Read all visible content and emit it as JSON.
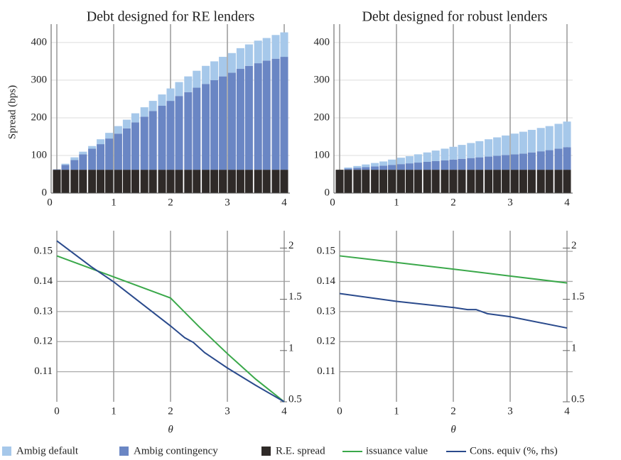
{
  "chart_data": [
    {
      "type": "bar",
      "stacked": true,
      "title": "Debt designed for RE lenders",
      "ylabel": "Spread (bps)",
      "x": [
        0,
        0.15,
        0.31,
        0.46,
        0.62,
        0.77,
        0.92,
        1.08,
        1.23,
        1.38,
        1.54,
        1.69,
        1.85,
        2,
        2.15,
        2.31,
        2.46,
        2.62,
        2.77,
        2.92,
        3.08,
        3.23,
        3.38,
        3.54,
        3.69,
        3.85,
        4
      ],
      "series": [
        {
          "name": "R.E. spread",
          "color": "#2f2a28",
          "values": [
            62,
            62,
            62,
            62,
            62,
            62,
            62,
            62,
            62,
            62,
            62,
            62,
            62,
            62,
            62,
            62,
            62,
            62,
            62,
            62,
            62,
            62,
            62,
            62,
            62,
            62,
            62
          ]
        },
        {
          "name": "Ambig contingency",
          "color": "#6a86c4",
          "values": [
            1,
            13,
            26,
            41,
            56,
            68,
            83,
            96,
            110,
            126,
            141,
            156,
            170,
            183,
            196,
            206,
            218,
            228,
            238,
            248,
            258,
            268,
            276,
            283,
            290,
            295,
            300
          ]
        },
        {
          "name": "Ambig default",
          "color": "#a6c8ea",
          "values": [
            0,
            3,
            7,
            7,
            7,
            13,
            15,
            20,
            23,
            24,
            25,
            27,
            30,
            33,
            37,
            42,
            45,
            48,
            50,
            52,
            52,
            55,
            57,
            60,
            60,
            63,
            65
          ]
        }
      ],
      "xlim": [
        0,
        4
      ],
      "xticks": [
        0,
        1,
        2,
        3,
        4
      ],
      "ylim": [
        0,
        430
      ],
      "yticks": [
        0,
        100,
        200,
        300,
        400
      ],
      "grid": true
    },
    {
      "type": "bar",
      "stacked": true,
      "title": "Debt designed for robust lenders",
      "x": [
        0,
        0.15,
        0.31,
        0.46,
        0.62,
        0.77,
        0.92,
        1.08,
        1.23,
        1.38,
        1.54,
        1.69,
        1.85,
        2,
        2.15,
        2.31,
        2.46,
        2.62,
        2.77,
        2.92,
        3.08,
        3.23,
        3.38,
        3.54,
        3.69,
        3.85,
        4
      ],
      "series": [
        {
          "color": "#2f2a28",
          "values": [
            62,
            62,
            62,
            62,
            62,
            62,
            62,
            62,
            62,
            62,
            62,
            62,
            62,
            62,
            62,
            62,
            62,
            62,
            62,
            62,
            62,
            62,
            62,
            62,
            62,
            62,
            62
          ]
        },
        {
          "color": "#6a86c4",
          "values": [
            0,
            3,
            5,
            7,
            9,
            11,
            13,
            15,
            17,
            19,
            21,
            23,
            25,
            27,
            29,
            31,
            33,
            35,
            37,
            39,
            41,
            43,
            46,
            49,
            52,
            56,
            60
          ]
        },
        {
          "color": "#a6c8ea",
          "values": [
            0,
            3,
            5,
            7,
            9,
            11,
            14,
            17,
            19,
            22,
            25,
            28,
            31,
            34,
            37,
            40,
            43,
            46,
            49,
            52,
            55,
            58,
            60,
            62,
            64,
            66,
            68
          ]
        }
      ],
      "xlim": [
        0,
        4
      ],
      "xticks": [
        0,
        1,
        2,
        3,
        4
      ],
      "ylim": [
        0,
        430
      ],
      "yticks": [
        0,
        100,
        200,
        300,
        400
      ],
      "grid": true
    },
    {
      "type": "line",
      "xlabel": "θ",
      "series": [
        {
          "name": "issuance value",
          "color": "#3aa84a",
          "axis": "y",
          "x": [
            0,
            1,
            1.93,
            2,
            2.5,
            3,
            3.5,
            4
          ],
          "values": [
            0.1485,
            0.1415,
            0.135,
            0.1345,
            0.125,
            0.116,
            0.1075,
            0.1
          ]
        },
        {
          "name": "Cons. equiv (%, rhs)",
          "color": "#2a4a8c",
          "axis": "y2",
          "x": [
            0,
            0.6,
            1,
            2,
            2.25,
            2.4,
            2.6,
            3,
            3.5,
            4
          ],
          "values": [
            2.07,
            1.82,
            1.67,
            1.24,
            1.125,
            1.08,
            0.98,
            0.83,
            0.66,
            0.5
          ]
        }
      ],
      "xlim": [
        0,
        4
      ],
      "xticks": [
        0,
        1,
        2,
        3,
        4
      ],
      "ylim": [
        0.1,
        0.1545
      ],
      "yticks": [
        0.11,
        0.12,
        0.13,
        0.14,
        0.15
      ],
      "y2lim": [
        0.5,
        2.1
      ],
      "y2ticks": [
        0.5,
        1,
        1.5,
        2
      ],
      "grid": true
    },
    {
      "type": "line",
      "xlabel": "θ",
      "series": [
        {
          "color": "#3aa84a",
          "axis": "y",
          "x": [
            0,
            1,
            2,
            3,
            4
          ],
          "values": [
            0.1485,
            0.1463,
            0.1441,
            0.1418,
            0.1395
          ]
        },
        {
          "color": "#2a4a8c",
          "axis": "y2",
          "x": [
            0,
            1,
            2,
            2.25,
            2.4,
            2.6,
            3,
            4
          ],
          "values": [
            1.556,
            1.48,
            1.42,
            1.4,
            1.4,
            1.36,
            1.33,
            1.22
          ]
        }
      ],
      "xlim": [
        0,
        4
      ],
      "xticks": [
        0,
        1,
        2,
        3,
        4
      ],
      "ylim": [
        0.1,
        0.1545
      ],
      "yticks": [
        0.11,
        0.12,
        0.13,
        0.14,
        0.15
      ],
      "y2lim": [
        0.5,
        2.1
      ],
      "y2ticks": [
        0.5,
        1,
        1.5,
        2
      ],
      "grid": true
    }
  ]
}
